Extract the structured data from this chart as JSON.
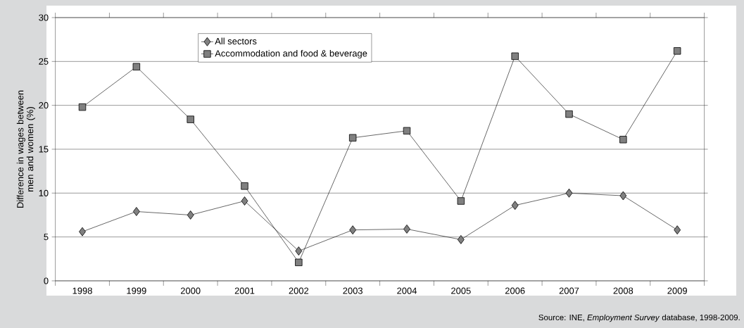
{
  "chart_data": {
    "type": "line",
    "ylabel": "Difference in wages between men and women (%)",
    "categories": [
      "1998",
      "1999",
      "2000",
      "2001",
      "2002",
      "2003",
      "2004",
      "2005",
      "2006",
      "2007",
      "2008",
      "2009"
    ],
    "series": [
      {
        "name": "All sectors",
        "color": "#808080",
        "marker": "diamond",
        "values": [
          5.6,
          7.9,
          7.5,
          9.1,
          3.4,
          5.8,
          5.9,
          4.7,
          8.6,
          10.0,
          9.7,
          5.8
        ]
      },
      {
        "name": "Accommodation and food & beverage",
        "color": "#808080",
        "marker": "square",
        "values": [
          19.8,
          24.4,
          18.4,
          10.8,
          2.1,
          16.3,
          17.1,
          9.1,
          25.6,
          19.0,
          16.1,
          26.2
        ]
      }
    ],
    "ylim": [
      0,
      30
    ],
    "yticks": [
      0,
      5,
      10,
      15,
      20,
      25,
      30
    ],
    "grid": "y",
    "legend": "top",
    "line_style": "solid",
    "annotations": [
      "Source: INE, *Employment Survey* database, 1998-2009."
    ]
  }
}
